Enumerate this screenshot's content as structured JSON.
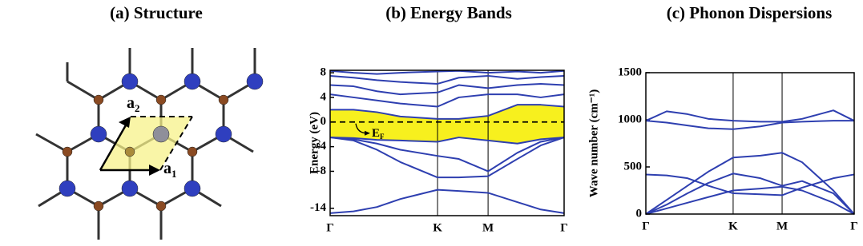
{
  "structure": {
    "title": "(a)  Structure",
    "vectors": [
      {
        "text": "a",
        "subscript": "1"
      },
      {
        "text": "a",
        "subscript": "2"
      }
    ]
  },
  "chart_data": [
    {
      "type": "line",
      "title": "(b) Energy Bands",
      "ylabel": "Energy (eV)",
      "color": "#2e3fb0",
      "highlight_color": "#f7f01e",
      "x": [
        0,
        0.1,
        0.2,
        0.3,
        0.459,
        0.55,
        0.675,
        0.8,
        0.9,
        1
      ],
      "xlim": [
        0,
        1
      ],
      "xticks": [
        {
          "value": 0,
          "label": "Γ"
        },
        {
          "value": 0.459,
          "label": "K"
        },
        {
          "value": 0.675,
          "label": "M"
        },
        {
          "value": 1,
          "label": "Γ"
        }
      ],
      "xgrid": true,
      "ylim": [
        -15.2,
        8.4
      ],
      "yticks": [
        -14,
        -8,
        -4,
        0,
        4,
        8
      ],
      "fermi_level": 0,
      "annotation": {
        "text": "E",
        "subscript": "F"
      },
      "series": [
        {
          "values": [
            -14.8,
            -14.5,
            -13.8,
            -12.5,
            -11.0,
            -11.2,
            -11.5,
            -13.0,
            -14.2,
            -14.8
          ]
        },
        {
          "values": [
            -2.5,
            -3.0,
            -4.5,
            -6.5,
            -9.0,
            -9.0,
            -8.8,
            -6.0,
            -3.8,
            -2.5
          ]
        },
        {
          "values": [
            -2.5,
            -2.8,
            -3.5,
            -4.5,
            -5.5,
            -6.0,
            -8.0,
            -5.0,
            -3.2,
            -2.5
          ]
        },
        {
          "values": [
            -2.5,
            -2.6,
            -2.9,
            -3.0,
            -3.2,
            -2.5,
            -3.0,
            -3.5,
            -2.8,
            -2.5
          ]
        },
        {
          "values": [
            2.0,
            2.0,
            1.6,
            0.9,
            0.5,
            0.5,
            1.0,
            2.8,
            2.8,
            2.5
          ]
        },
        {
          "values": [
            4.5,
            4.0,
            3.5,
            3.0,
            2.5,
            4.0,
            4.5,
            4.5,
            4.0,
            4.5
          ]
        },
        {
          "values": [
            6.0,
            5.8,
            5.0,
            4.5,
            4.8,
            6.0,
            5.5,
            6.0,
            6.2,
            6.0
          ]
        },
        {
          "values": [
            7.5,
            7.2,
            6.8,
            6.5,
            6.2,
            7.2,
            7.5,
            7.0,
            7.3,
            7.5
          ]
        },
        {
          "values": [
            8.3,
            8.0,
            7.8,
            8.0,
            8.2,
            8.3,
            8.0,
            8.2,
            8.0,
            8.3
          ]
        }
      ]
    },
    {
      "type": "line",
      "title": "(c) Phonon Dispersions",
      "ylabel": "Wave number (cm⁻¹)",
      "color": "#2e3fb0",
      "x": [
        0,
        0.1,
        0.2,
        0.3,
        0.419,
        0.55,
        0.654,
        0.75,
        0.9,
        1
      ],
      "xlim": [
        0,
        1
      ],
      "xticks": [
        {
          "value": 0,
          "label": "Γ"
        },
        {
          "value": 0.419,
          "label": "K"
        },
        {
          "value": 0.654,
          "label": "M"
        },
        {
          "value": 1,
          "label": "Γ"
        }
      ],
      "xgrid": true,
      "ylim": [
        0,
        1500
      ],
      "yticks": [
        0,
        500,
        1000,
        1500
      ],
      "series": [
        {
          "values": [
            990,
            1090,
            1060,
            1010,
            990,
            980,
            980,
            1010,
            1100,
            990
          ]
        },
        {
          "values": [
            990,
            970,
            940,
            910,
            900,
            930,
            970,
            980,
            990,
            990
          ]
        },
        {
          "values": [
            420,
            410,
            380,
            300,
            220,
            210,
            200,
            280,
            380,
            420
          ]
        },
        {
          "values": [
            0,
            150,
            300,
            450,
            600,
            620,
            650,
            550,
            250,
            0
          ]
        },
        {
          "values": [
            0,
            100,
            220,
            330,
            430,
            380,
            300,
            350,
            220,
            0
          ]
        },
        {
          "values": [
            0,
            60,
            120,
            180,
            250,
            270,
            290,
            250,
            120,
            0
          ]
        }
      ]
    }
  ]
}
